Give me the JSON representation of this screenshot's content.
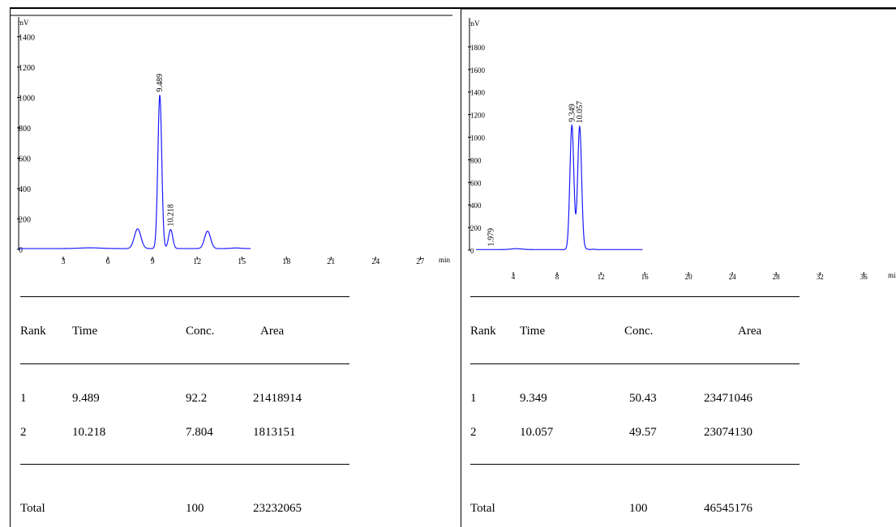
{
  "chart_data": [
    {
      "type": "line",
      "y_unit_label": "mV",
      "x_unit_label": "min",
      "xlim": [
        0,
        29
      ],
      "ylim": [
        0,
        1450
      ],
      "x_ticks": [
        3,
        6,
        9,
        12,
        15,
        18,
        21,
        24,
        27
      ],
      "y_ticks": [
        0,
        200,
        400,
        600,
        800,
        1000,
        1200,
        1400
      ],
      "data_end": 15.6,
      "baseline": 5,
      "peaks": [
        {
          "t": 4.8,
          "h": 5,
          "w": 0.7
        },
        {
          "t": 8.0,
          "h": 130,
          "w": 0.22
        },
        {
          "t": 9.489,
          "h": 1010,
          "w": 0.13
        },
        {
          "t": 10.218,
          "h": 125,
          "w": 0.14
        },
        {
          "t": 12.7,
          "h": 115,
          "w": 0.2
        },
        {
          "t": 14.6,
          "h": 4,
          "w": 0.3
        }
      ],
      "peak_labels": [
        {
          "t": 9.489,
          "text": "9.489"
        },
        {
          "t": 10.218,
          "text": "10.218"
        }
      ],
      "series_color": "#1a1aff"
    },
    {
      "type": "line",
      "y_unit_label": "mV",
      "x_unit_label": "min",
      "xlim": [
        0,
        38.5
      ],
      "ylim": [
        0,
        1950
      ],
      "x_ticks": [
        4,
        8,
        12,
        16,
        20,
        24,
        28,
        32,
        36
      ],
      "y_ticks": [
        0,
        200,
        400,
        600,
        800,
        1000,
        1200,
        1400,
        1600,
        1800
      ],
      "data_start": 0.6,
      "data_end": 15.8,
      "baseline": 5,
      "peaks": [
        {
          "t": 4.3,
          "h": 8,
          "w": 0.5
        },
        {
          "t": 9.349,
          "h": 1100,
          "w": 0.18
        },
        {
          "t": 10.057,
          "h": 1090,
          "w": 0.18
        },
        {
          "t": 10.6,
          "h": 6,
          "w": 0.15
        },
        {
          "t": 11.3,
          "h": 3,
          "w": 0.15
        }
      ],
      "peak_labels": [
        {
          "t": 1.979,
          "text": "1.979"
        },
        {
          "t": 9.349,
          "text": "9.349"
        },
        {
          "t": 10.057,
          "text": "10.057"
        }
      ],
      "series_color": "#1a1aff"
    }
  ],
  "tables": [
    {
      "headers": [
        "Rank",
        "Time",
        "Conc.",
        "Area"
      ],
      "rows": [
        [
          "1",
          "9.489",
          "92.2",
          "21418914"
        ],
        [
          "2",
          "10.218",
          "7.804",
          "1813151"
        ]
      ],
      "total": {
        "label": "Total",
        "conc": "100",
        "area": "23232065"
      }
    },
    {
      "headers": [
        "Rank",
        "Time",
        "Conc.",
        "Area"
      ],
      "rows": [
        [
          "1",
          "9.349",
          "50.43",
          "23471046"
        ],
        [
          "2",
          "10.057",
          "49.57",
          "23074130"
        ]
      ],
      "total": {
        "label": "Total",
        "conc": "100",
        "area": "46545176"
      }
    }
  ]
}
